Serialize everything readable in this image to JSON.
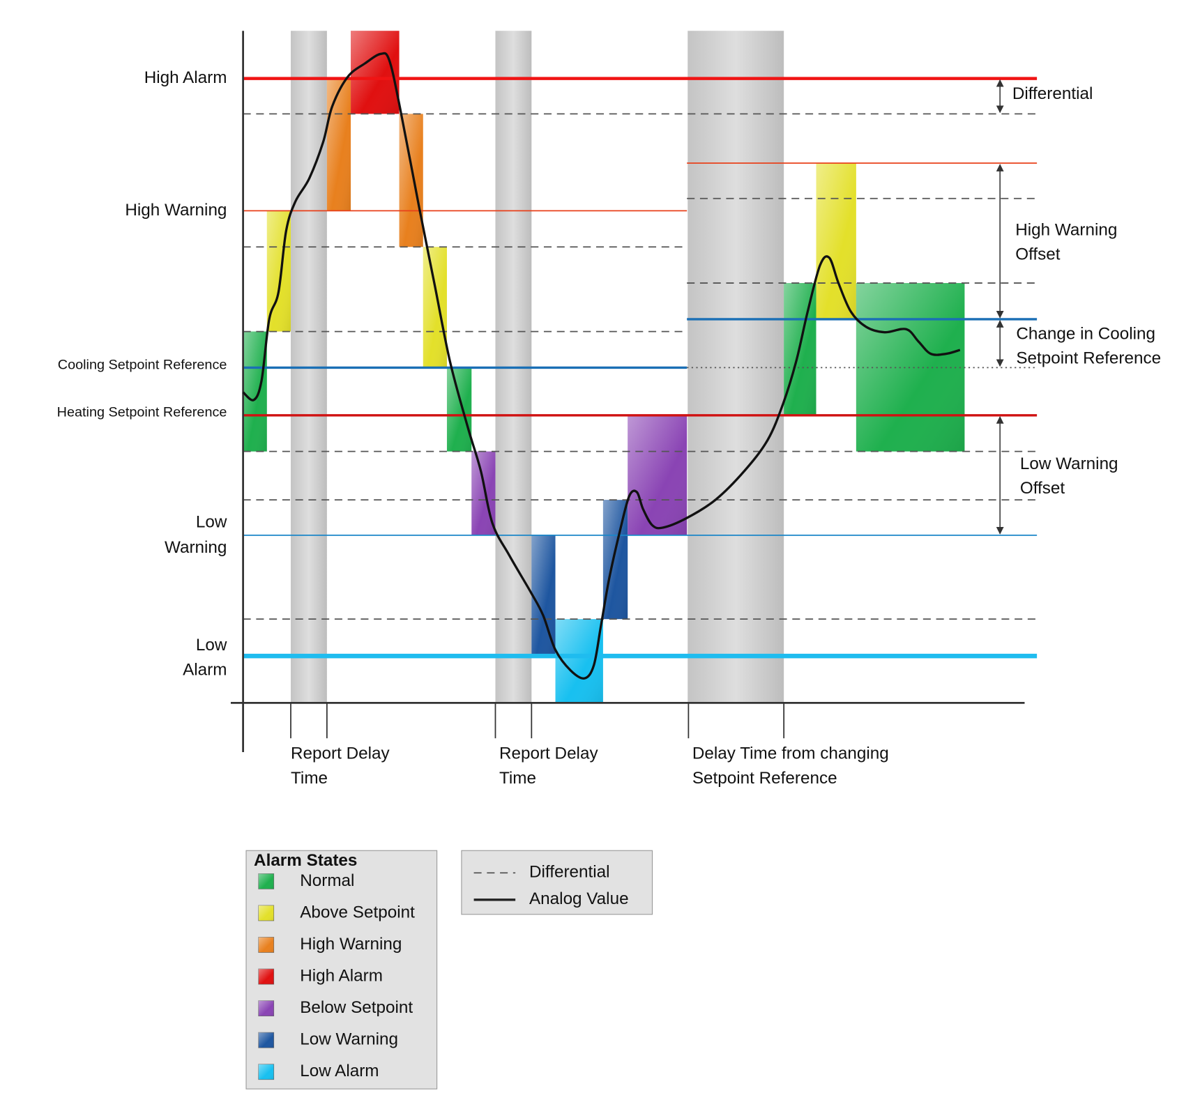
{
  "left_labels": [
    {
      "lines": [
        "High Alarm"
      ]
    },
    {
      "lines": [
        "High Warning"
      ]
    },
    {
      "lines": [
        "Cooling Setpoint Reference"
      ]
    },
    {
      "lines": [
        "Heating Setpoint Reference"
      ]
    },
    {
      "lines": [
        "Low",
        "Warning"
      ]
    },
    {
      "lines": [
        "Low",
        "Alarm"
      ]
    }
  ],
  "right_labels": [
    {
      "lines": [
        "Differential"
      ]
    },
    {
      "lines": [
        "High Warning",
        "Offset"
      ]
    },
    {
      "lines": [
        "Change in Cooling",
        "Setpoint Reference"
      ]
    },
    {
      "lines": [
        "Low Warning",
        "Offset"
      ]
    }
  ],
  "time_labels": [
    {
      "lines": [
        "Report Delay",
        "Time"
      ]
    },
    {
      "lines": [
        "Report Delay",
        "Time"
      ]
    },
    {
      "lines": [
        "Delay Time from changing",
        "Setpoint Reference"
      ]
    }
  ],
  "legend": {
    "title": "Alarm States",
    "items": [
      {
        "label": "Normal",
        "color": "#1fb04e"
      },
      {
        "label": "Above Setpoint",
        "color": "#e3e02a"
      },
      {
        "label": "High Warning",
        "color": "#e8801e"
      },
      {
        "label": "High Alarm",
        "color": "#e01010"
      },
      {
        "label": "Below Setpoint",
        "color": "#8a44b4"
      },
      {
        "label": "Low Warning",
        "color": "#1e56a0"
      },
      {
        "label": "Low Alarm",
        "color": "#18c0f0"
      }
    ]
  },
  "line_legend": {
    "items": [
      {
        "label": "Differential"
      },
      {
        "label": "Analog Value"
      }
    ]
  }
}
